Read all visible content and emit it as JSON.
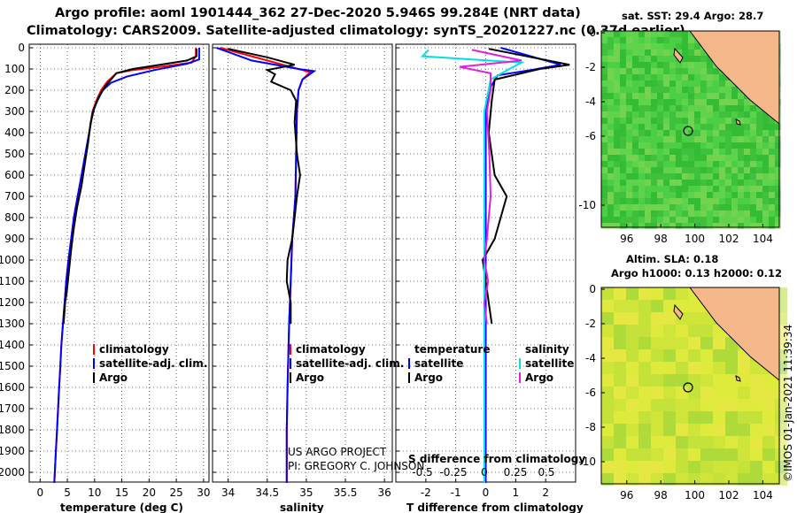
{
  "header": {
    "line1": "Argo profile: aoml 1901444_362 27-Dec-2020 5.946S 99.284E (NRT data)",
    "line2": "Climatology: CARS2009. Satellite-adjusted climatology: synTS_20201227.nc (0.37d earlier)"
  },
  "pressure_ticks": [
    "0",
    "100",
    "200",
    "300",
    "400",
    "500",
    "600",
    "700",
    "800",
    "900",
    "1000",
    "1100",
    "1200",
    "1300",
    "1400",
    "1500",
    "1600",
    "1700",
    "1800",
    "1900",
    "2000"
  ],
  "panels": {
    "temperature": {
      "xlabel": "temperature (deg C)",
      "ticks": [
        "0",
        "5",
        "10",
        "15",
        "20",
        "25",
        "30"
      ],
      "legend": [
        "climatology",
        "satellite-adj. clim.",
        "Argo"
      ]
    },
    "salinity": {
      "xlabel": "salinity",
      "ticks": [
        "34",
        "34.5",
        "35",
        "35.5",
        "36"
      ],
      "legend": [
        "climatology",
        "satellite-adj. clim.",
        "Argo"
      ],
      "credit1": "US ARGO PROJECT",
      "credit2": "PI: GREGORY C. JOHNSON"
    },
    "difference": {
      "xlabel": "T difference from climatology",
      "ticks": [
        "-2",
        "-1",
        "0",
        "1",
        "2"
      ],
      "s_title": "S difference from climatology",
      "s_ticks": [
        "-0.5",
        "-0.25",
        "0",
        "0.25",
        "0.5"
      ],
      "legend_temp_title": "temperature",
      "legend_sal_title": "salinity",
      "legend_temp": [
        "satellite",
        "Argo"
      ],
      "legend_sal": [
        "satellite",
        "Argo"
      ]
    }
  },
  "maps": {
    "sst_title": "sat. SST: 29.4 Argo: 28.7",
    "sla_title1": "Altim. SLA: 0.18",
    "sla_title2": "Argo h1000: 0.13 h2000: 0.12",
    "lat_ticks": [
      "0",
      "-2",
      "-4",
      "-6",
      "-8",
      "-10"
    ],
    "lat_ticks_top": [
      "0",
      "-2",
      "-4",
      "-6",
      "-10"
    ],
    "lon_ticks": [
      "96",
      "98",
      "100",
      "102",
      "104"
    ]
  },
  "footer": {
    "stamp": "©IMOS 01-Jan-2021 11:39:34"
  },
  "colors": {
    "clim": "#ff0000",
    "sat": "#0000ff",
    "argo": "#000000",
    "sat_s": "#00e0e0",
    "argo_s": "#e020e0",
    "land": "#f4b88a"
  },
  "chart_data": [
    {
      "type": "line",
      "title": "temperature",
      "xlabel": "temperature (deg C)",
      "ylabel": "pressure",
      "xlim": [
        -2,
        31
      ],
      "ylim": [
        2080,
        -20
      ],
      "series": [
        {
          "name": "climatology",
          "points": [
            [
              28.6,
              0
            ],
            [
              28.6,
              40
            ],
            [
              27.8,
              70
            ],
            [
              22,
              90
            ],
            [
              17,
              105
            ],
            [
              14,
              120
            ],
            [
              12.3,
              160
            ],
            [
              11.2,
              200
            ],
            [
              10.3,
              250
            ],
            [
              9.6,
              300
            ],
            [
              9,
              400
            ],
            [
              8.3,
              500
            ],
            [
              7.6,
              600
            ],
            [
              6.9,
              700
            ],
            [
              6.2,
              800
            ],
            [
              5.7,
              900
            ],
            [
              5.2,
              1000
            ],
            [
              4.8,
              1100
            ],
            [
              4.5,
              1200
            ],
            [
              4.2,
              1300
            ],
            [
              3.9,
              1400
            ],
            [
              3.7,
              1500
            ],
            [
              3.5,
              1600
            ],
            [
              3.3,
              1700
            ],
            [
              3.1,
              1800
            ],
            [
              2.9,
              1900
            ],
            [
              2.6,
              2050
            ]
          ]
        },
        {
          "name": "satellite-adj. clim.",
          "points": [
            [
              29.2,
              0
            ],
            [
              29.2,
              55
            ],
            [
              27,
              75
            ],
            [
              21,
              105
            ],
            [
              16,
              135
            ],
            [
              13,
              165
            ],
            [
              11.5,
              200
            ],
            [
              10.5,
              250
            ],
            [
              9.7,
              300
            ],
            [
              9,
              400
            ],
            [
              8.3,
              500
            ],
            [
              7.6,
              600
            ],
            [
              6.9,
              700
            ],
            [
              6.2,
              800
            ],
            [
              5.7,
              900
            ],
            [
              5.2,
              1000
            ],
            [
              4.8,
              1100
            ],
            [
              4.5,
              1200
            ],
            [
              4.2,
              1300
            ],
            [
              3.9,
              1400
            ],
            [
              3.7,
              1500
            ],
            [
              3.5,
              1600
            ],
            [
              3.3,
              1700
            ],
            [
              3.1,
              1800
            ],
            [
              2.9,
              1900
            ],
            [
              2.6,
              2050
            ]
          ]
        },
        {
          "name": "Argo",
          "points": [
            [
              28.7,
              5
            ],
            [
              28.7,
              40
            ],
            [
              27,
              60
            ],
            [
              22,
              80
            ],
            [
              17,
              100
            ],
            [
              14,
              120
            ],
            [
              12,
              180
            ],
            [
              10.8,
              230
            ],
            [
              10,
              280
            ],
            [
              9.3,
              350
            ],
            [
              8.8,
              450
            ],
            [
              8.2,
              550
            ],
            [
              7.6,
              650
            ],
            [
              6.8,
              750
            ],
            [
              6.2,
              850
            ],
            [
              5.7,
              950
            ],
            [
              5.3,
              1050
            ],
            [
              4.9,
              1150
            ],
            [
              4.6,
              1200
            ],
            [
              4.3,
              1300
            ]
          ]
        }
      ]
    },
    {
      "type": "line",
      "title": "salinity",
      "xlabel": "salinity",
      "ylabel": "pressure",
      "xlim": [
        33.8,
        36.1
      ],
      "ylim": [
        2080,
        -20
      ],
      "series": [
        {
          "name": "climatology",
          "points": [
            [
              33.9,
              0
            ],
            [
              34.4,
              50
            ],
            [
              34.95,
              105
            ],
            [
              35.05,
              115
            ],
            [
              34.95,
              150
            ],
            [
              34.9,
              200
            ],
            [
              34.88,
              300
            ],
            [
              34.87,
              500
            ],
            [
              34.86,
              700
            ],
            [
              34.82,
              900
            ],
            [
              34.8,
              1100
            ],
            [
              34.78,
              1300
            ],
            [
              34.76,
              1600
            ],
            [
              34.75,
              1800
            ],
            [
              34.75,
              2050
            ]
          ]
        },
        {
          "name": "satellite-adj. clim.",
          "points": [
            [
              33.85,
              0
            ],
            [
              34.3,
              60
            ],
            [
              34.9,
              100
            ],
            [
              35.1,
              110
            ],
            [
              34.95,
              150
            ],
            [
              34.9,
              200
            ],
            [
              34.88,
              300
            ],
            [
              34.87,
              500
            ],
            [
              34.86,
              700
            ],
            [
              34.82,
              900
            ],
            [
              34.8,
              1100
            ],
            [
              34.78,
              1300
            ],
            [
              34.76,
              1600
            ],
            [
              34.75,
              1800
            ],
            [
              34.75,
              2050
            ]
          ]
        },
        {
          "name": "Argo",
          "points": [
            [
              34.0,
              5
            ],
            [
              34.5,
              45
            ],
            [
              34.85,
              80
            ],
            [
              34.5,
              105
            ],
            [
              34.6,
              125
            ],
            [
              34.55,
              160
            ],
            [
              34.8,
              200
            ],
            [
              34.87,
              250
            ],
            [
              34.85,
              350
            ],
            [
              34.88,
              500
            ],
            [
              34.92,
              600
            ],
            [
              34.88,
              700
            ],
            [
              34.85,
              800
            ],
            [
              34.82,
              900
            ],
            [
              34.76,
              1000
            ],
            [
              34.75,
              1100
            ],
            [
              34.8,
              1200
            ],
            [
              34.8,
              1300
            ]
          ]
        }
      ]
    },
    {
      "type": "line",
      "title": "T and S difference from climatology",
      "xlabel": "T difference from climatology",
      "ylabel": "pressure",
      "xlim": [
        -3,
        3
      ],
      "ylim": [
        2080,
        -20
      ],
      "series": [
        {
          "name": "temperature satellite",
          "points": [
            [
              0.5,
              0
            ],
            [
              2.5,
              80
            ],
            [
              1.5,
              105
            ],
            [
              0.4,
              130
            ],
            [
              0.1,
              200
            ],
            [
              0,
              300
            ],
            [
              0,
              1000
            ],
            [
              0,
              2050
            ]
          ]
        },
        {
          "name": "temperature Argo",
          "points": [
            [
              0.1,
              5
            ],
            [
              2.8,
              80
            ],
            [
              1.8,
              100
            ],
            [
              0.3,
              150
            ],
            [
              0.2,
              250
            ],
            [
              0.1,
              400
            ],
            [
              0.3,
              600
            ],
            [
              0.7,
              700
            ],
            [
              0.5,
              800
            ],
            [
              0.3,
              900
            ],
            [
              -0.1,
              1000
            ],
            [
              0,
              1100
            ],
            [
              0.1,
              1200
            ],
            [
              0.2,
              1300
            ]
          ]
        },
        {
          "name": "salinity satellite",
          "points": [
            [
              -0.45,
              10
            ],
            [
              -0.5,
              40
            ],
            [
              0.3,
              70
            ],
            [
              0.2,
              100
            ],
            [
              0.05,
              150
            ],
            [
              0,
              300
            ],
            [
              0,
              1000
            ],
            [
              0,
              2050
            ]
          ]
        },
        {
          "name": "salinity Argo",
          "points": [
            [
              -0.1,
              10
            ],
            [
              0.3,
              60
            ],
            [
              -0.2,
              90
            ],
            [
              0.05,
              120
            ],
            [
              0.05,
              200
            ],
            [
              0.02,
              300
            ],
            [
              0.04,
              500
            ],
            [
              0.05,
              700
            ],
            [
              0.02,
              900
            ],
            [
              0,
              1000
            ],
            [
              0.03,
              1100
            ],
            [
              0,
              1200
            ],
            [
              0.02,
              1300
            ]
          ]
        }
      ]
    }
  ]
}
